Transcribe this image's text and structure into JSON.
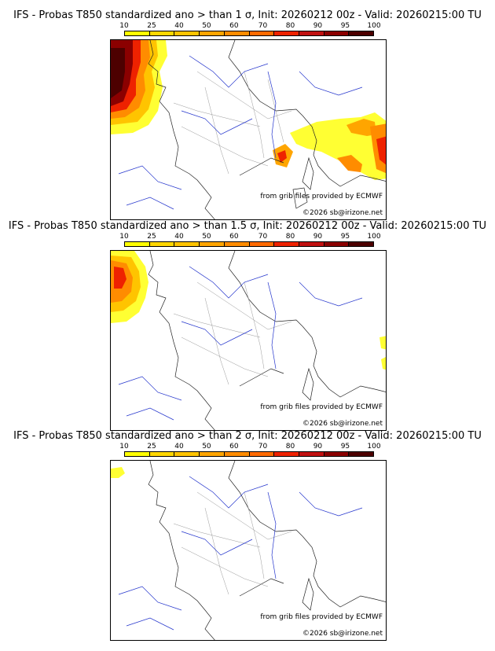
{
  "scale": {
    "ticks": [
      "10",
      "25",
      "40",
      "50",
      "60",
      "70",
      "80",
      "90",
      "95",
      "100"
    ],
    "colors": [
      "#ffff00",
      "#ffd700",
      "#ffc400",
      "#ffa500",
      "#ff8c00",
      "#ff6a00",
      "#ee2200",
      "#c01010",
      "#8b0000",
      "#4d0000"
    ]
  },
  "panels": [
    {
      "title": "IFS - Probas T850  standardized ano > than 1 σ, Init: 20260212 00z - Valid: 20260215:00 TU",
      "credit_source": "from grib files provided by ECMWF",
      "credit_copy": "©2026 sb@irizone.net"
    },
    {
      "title": "IFS - Probas T850  standardized ano > than 1.5 σ, Init: 20260212 00z - Valid: 20260215:00 TU",
      "credit_source": "from grib files provided by ECMWF",
      "credit_copy": "©2026 sb@irizone.net"
    },
    {
      "title": "IFS - Probas T850  standardized ano > than 2 σ, Init: 20260212 00z - Valid: 20260215:00 TU",
      "credit_source": "from grib files provided by ECMWF",
      "credit_copy": "©2026 sb@irizone.net"
    }
  ]
}
